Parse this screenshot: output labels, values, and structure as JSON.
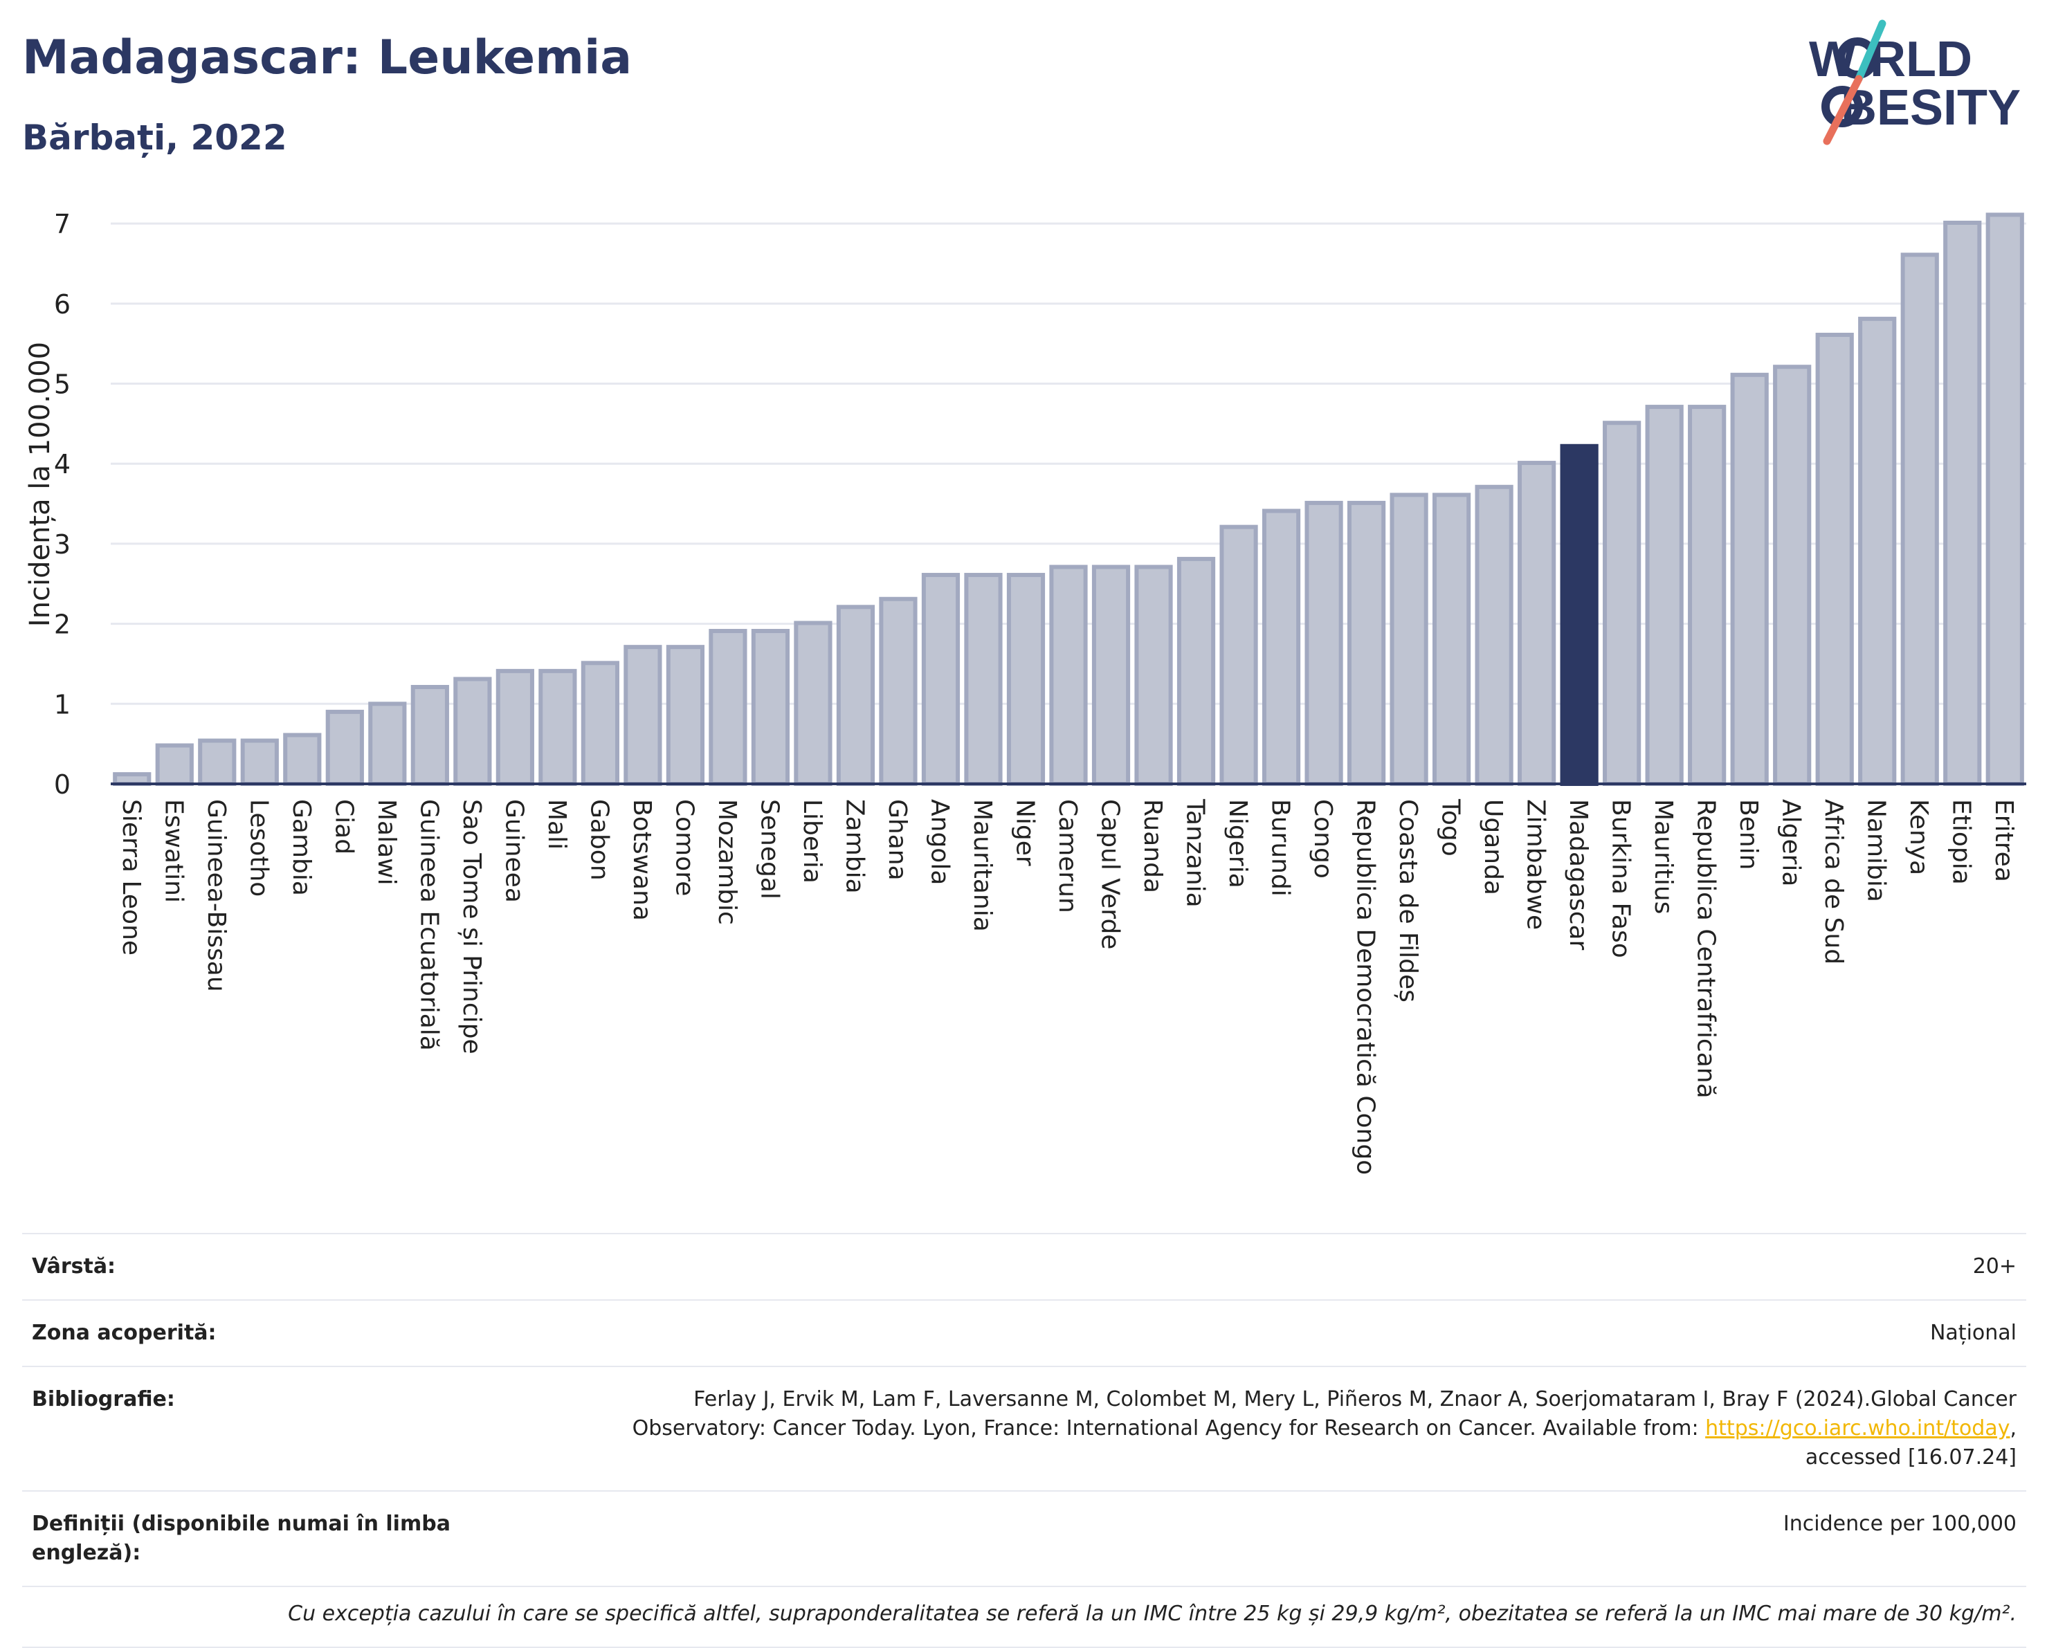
{
  "header": {
    "title": "Madagascar: Leukemia",
    "subtitle": "Bărbați, 2022"
  },
  "logo": {
    "line1": "W RLD",
    "line2": "BESITY",
    "icon": "world-obesity-logo",
    "colors": {
      "text": "#2c3863",
      "slash_teal": "#3cbfbf",
      "slash_coral": "#e8705b"
    }
  },
  "chart_data": {
    "type": "bar",
    "ylabel": "Incidența la 100.000",
    "xlabel": "",
    "ylim": [
      0,
      7.2
    ],
    "yticks": [
      0,
      1,
      2,
      3,
      4,
      5,
      6,
      7
    ],
    "grid": true,
    "highlight": "Madagascar",
    "colors": {
      "bar": "#bfc4d2",
      "bar_edge": "#a2a9c0",
      "highlight": "#2c3863",
      "grid": "#e6e8ef"
    },
    "categories": [
      "Sierra Leone",
      "Eswatini",
      "Guineea-Bissau",
      "Lesotho",
      "Gambia",
      "Ciad",
      "Malawi",
      "Guineea Ecuatorială",
      "Sao Tome și Principe",
      "Guineea",
      "Mali",
      "Gabon",
      "Botswana",
      "Comore",
      "Mozambic",
      "Senegal",
      "Liberia",
      "Zambia",
      "Ghana",
      "Angola",
      "Mauritania",
      "Niger",
      "Camerun",
      "Capul Verde",
      "Ruanda",
      "Tanzania",
      "Nigeria",
      "Burundi",
      "Congo",
      "Republica Democratică Congo",
      "Coasta de Fildeș",
      "Togo",
      "Uganda",
      "Zimbabwe",
      "Madagascar",
      "Burkina Faso",
      "Mauritius",
      "Republica Centrafricană",
      "Benin",
      "Algeria",
      "Africa de Sud",
      "Namibia",
      "Kenya",
      "Etiopia",
      "Eritrea"
    ],
    "values": [
      0.12,
      0.48,
      0.54,
      0.54,
      0.61,
      0.9,
      1.0,
      1.21,
      1.31,
      1.41,
      1.41,
      1.51,
      1.71,
      1.71,
      1.91,
      1.91,
      2.01,
      2.21,
      2.31,
      2.61,
      2.61,
      2.61,
      2.71,
      2.71,
      2.71,
      2.81,
      3.21,
      3.41,
      3.51,
      3.51,
      3.61,
      3.61,
      3.71,
      4.01,
      4.22,
      4.51,
      4.71,
      4.71,
      5.11,
      5.21,
      5.61,
      5.81,
      6.61,
      7.01,
      7.11
    ]
  },
  "info": {
    "age": {
      "label": "Vârstă:",
      "value": "20+"
    },
    "area": {
      "label": "Zona acoperită:",
      "value": "Național"
    },
    "bibliography": {
      "label": "Bibliografie:",
      "line1": "Ferlay J, Ervik M, Lam F, Laversanne M, Colombet M, Mery L, Piñeros M, Znaor A, Soerjomataram I, Bray F (2024).Global Cancer",
      "line2": "Observatory: Cancer Today. Lyon, France: International Agency for Research on Cancer. Available from: ",
      "link": "https://gco.iarc.who.int/today",
      "line2_end": ",",
      "line3": "accessed [16.07.24]"
    },
    "definitions": {
      "label": "Definiții (disponibile numai în limba engleză):",
      "value": "Incidence per 100,000"
    },
    "note": "Cu excepția cazului în care se specifică altfel, supraponderalitatea se referă la un IMC între 25 kg și 29,9 kg/m², obezitatea se referă la un IMC mai mare de 30 kg/m²."
  }
}
